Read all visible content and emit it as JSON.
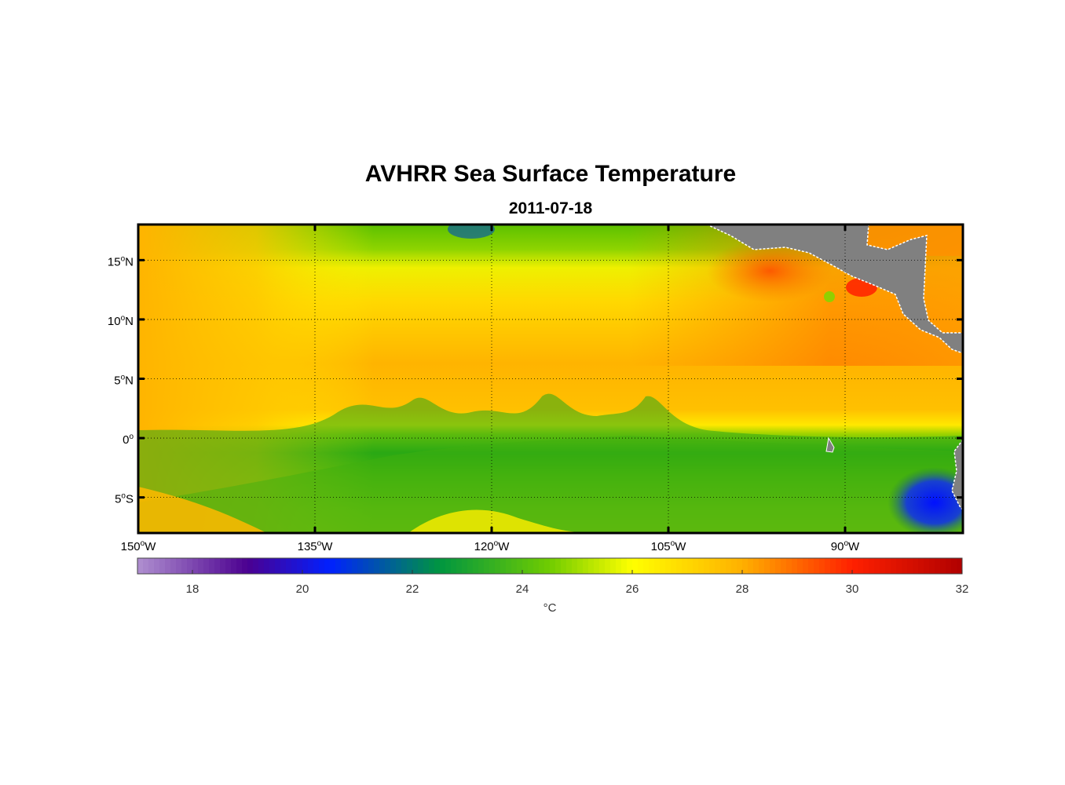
{
  "title": "AVHRR Sea Surface Temperature",
  "subtitle": "2011-07-18",
  "map": {
    "lon_range": [
      -150,
      -80
    ],
    "lat_range": [
      -8,
      18
    ],
    "grid": true,
    "lat_ticks": [
      {
        "value": 15,
        "deg": "15",
        "hemi": "N"
      },
      {
        "value": 10,
        "deg": "10",
        "hemi": "N"
      },
      {
        "value": 5,
        "deg": "5",
        "hemi": "N"
      },
      {
        "value": 0,
        "deg": "0",
        "hemi": ""
      },
      {
        "value": -5,
        "deg": "5",
        "hemi": "S"
      }
    ],
    "lon_ticks": [
      {
        "value": -150,
        "deg": "150",
        "hemi": "W"
      },
      {
        "value": -135,
        "deg": "135",
        "hemi": "W"
      },
      {
        "value": -120,
        "deg": "120",
        "hemi": "W"
      },
      {
        "value": -105,
        "deg": "105",
        "hemi": "W"
      },
      {
        "value": -90,
        "deg": "90",
        "hemi": "W"
      }
    ],
    "land_color": "#808080"
  },
  "colorbar": {
    "range": [
      17,
      32
    ],
    "ticks": [
      "18",
      "20",
      "22",
      "24",
      "26",
      "28",
      "30",
      "32"
    ],
    "unit": "°C",
    "stops": [
      {
        "t": 17,
        "color": "#b090d0"
      },
      {
        "t": 19,
        "color": "#4b0090"
      },
      {
        "t": 20.5,
        "color": "#0020ff"
      },
      {
        "t": 22.5,
        "color": "#009640"
      },
      {
        "t": 24.5,
        "color": "#70cc00"
      },
      {
        "t": 26,
        "color": "#ffff00"
      },
      {
        "t": 28,
        "color": "#ffb000"
      },
      {
        "t": 30,
        "color": "#ff2000"
      },
      {
        "t": 32,
        "color": "#b00000"
      }
    ]
  }
}
